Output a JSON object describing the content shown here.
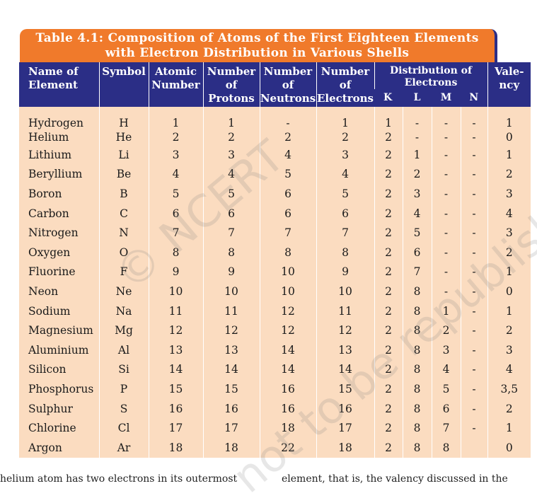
{
  "title": {
    "line1": "Table 4.1: Composition of Atoms of the First Eighteen Elements",
    "line2": "with Electron Distribution in Various Shells"
  },
  "headers": {
    "name": "Name of Element",
    "symbol": "Symbol",
    "atomic_number": "Atomic Number",
    "protons": "Number of Protons",
    "neutrons": "Number of Neutrons",
    "electrons": "Number of Electrons",
    "distribution": "Distribution of Electrons",
    "shells": [
      "K",
      "L",
      "M",
      "N"
    ],
    "valency": "Vale- ncy"
  },
  "rows": [
    {
      "name": "Hydrogen",
      "symbol": "H",
      "z": "1",
      "p": "1",
      "n": "-",
      "e": "1",
      "K": "1",
      "L": "-",
      "M": "-",
      "N": "-",
      "v": "1"
    },
    {
      "name": "Helium",
      "symbol": "He",
      "z": "2",
      "p": "2",
      "n": "2",
      "e": "2",
      "K": "2",
      "L": "-",
      "M": "-",
      "N": "-",
      "v": "0"
    },
    {
      "name": "Lithium",
      "symbol": "Li",
      "z": "3",
      "p": "3",
      "n": "4",
      "e": "3",
      "K": "2",
      "L": "1",
      "M": "-",
      "N": "-",
      "v": "1"
    },
    {
      "name": "Beryllium",
      "symbol": "Be",
      "z": "4",
      "p": "4",
      "n": "5",
      "e": "4",
      "K": "2",
      "L": "2",
      "M": "-",
      "N": "-",
      "v": "2"
    },
    {
      "name": "Boron",
      "symbol": "B",
      "z": "5",
      "p": "5",
      "n": "6",
      "e": "5",
      "K": "2",
      "L": "3",
      "M": "-",
      "N": "-",
      "v": "3"
    },
    {
      "name": "Carbon",
      "symbol": "C",
      "z": "6",
      "p": "6",
      "n": "6",
      "e": "6",
      "K": "2",
      "L": "4",
      "M": "-",
      "N": "-",
      "v": "4"
    },
    {
      "name": "Nitrogen",
      "symbol": "N",
      "z": "7",
      "p": "7",
      "n": "7",
      "e": "7",
      "K": "2",
      "L": "5",
      "M": "-",
      "N": "-",
      "v": "3"
    },
    {
      "name": "Oxygen",
      "symbol": "O",
      "z": "8",
      "p": "8",
      "n": "8",
      "e": "8",
      "K": "2",
      "L": "6",
      "M": "-",
      "N": "-",
      "v": "2"
    },
    {
      "name": "Fluorine",
      "symbol": "F",
      "z": "9",
      "p": "9",
      "n": "10",
      "e": "9",
      "K": "2",
      "L": "7",
      "M": "-",
      "N": "-",
      "v": "1"
    },
    {
      "name": "Neon",
      "symbol": "Ne",
      "z": "10",
      "p": "10",
      "n": "10",
      "e": "10",
      "K": "2",
      "L": "8",
      "M": "-",
      "N": "-",
      "v": "0"
    },
    {
      "name": "Sodium",
      "symbol": "Na",
      "z": "11",
      "p": "11",
      "n": "12",
      "e": "11",
      "K": "2",
      "L": "8",
      "M": "1",
      "N": "-",
      "v": "1"
    },
    {
      "name": "Magnesium",
      "symbol": "Mg",
      "z": "12",
      "p": "12",
      "n": "12",
      "e": "12",
      "K": "2",
      "L": "8",
      "M": "2",
      "N": "-",
      "v": "2"
    },
    {
      "name": "Aluminium",
      "symbol": "Al",
      "z": "13",
      "p": "13",
      "n": "14",
      "e": "13",
      "K": "2",
      "L": "8",
      "M": "3",
      "N": "-",
      "v": "3"
    },
    {
      "name": "Silicon",
      "symbol": "Si",
      "z": "14",
      "p": "14",
      "n": "14",
      "e": "14",
      "K": "2",
      "L": "8",
      "M": "4",
      "N": "-",
      "v": "4"
    },
    {
      "name": "Phosphorus",
      "symbol": "P",
      "z": "15",
      "p": "15",
      "n": "16",
      "e": "15",
      "K": "2",
      "L": "8",
      "M": "5",
      "N": "-",
      "v": "3,5"
    },
    {
      "name": "Sulphur",
      "symbol": "S",
      "z": "16",
      "p": "16",
      "n": "16",
      "e": "16",
      "K": "2",
      "L": "8",
      "M": "6",
      "N": "-",
      "v": "2"
    },
    {
      "name": "Chlorine",
      "symbol": "Cl",
      "z": "17",
      "p": "17",
      "n": "18",
      "e": "17",
      "K": "2",
      "L": "8",
      "M": "7",
      "N": "-",
      "v": "1"
    },
    {
      "name": "Argon",
      "symbol": "Ar",
      "z": "18",
      "p": "18",
      "n": "22",
      "e": "18",
      "K": "2",
      "L": "8",
      "M": "8",
      "N": "",
      "v": "0"
    }
  ],
  "watermark": {
    "line1": "© NCERT",
    "line2": "not to be republished"
  },
  "footer": {
    "left": "helium atom has two electrons in its outermost",
    "right": "element, that is, the valency discussed in the"
  },
  "colors": {
    "title_bg": "#f07a2b",
    "header_bg": "#2b2e86",
    "body_bg": "#fbdcc0"
  }
}
